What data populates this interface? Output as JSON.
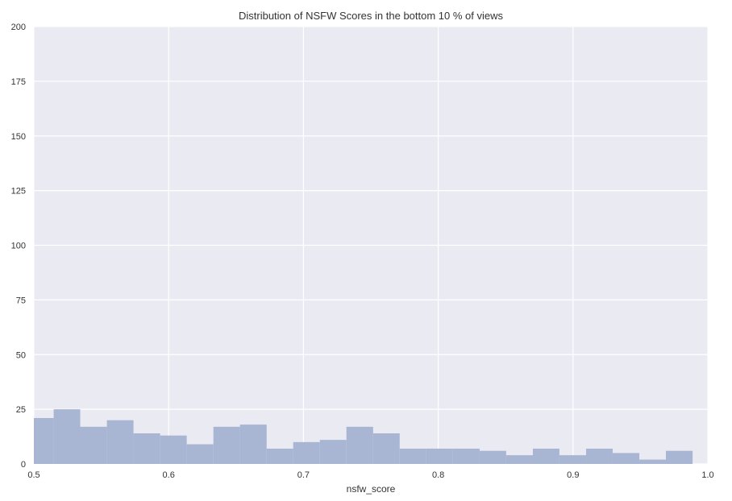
{
  "chart_data": {
    "type": "bar",
    "title": "Distribution of NSFW Scores in the bottom 10 % of views",
    "xlabel": "nsfw_score",
    "ylabel": "",
    "xlim": [
      0.5,
      1.0
    ],
    "ylim": [
      0,
      200
    ],
    "x_ticks": [
      "0.5",
      "0.6",
      "0.7",
      "0.8",
      "0.9",
      "1.0"
    ],
    "y_ticks": [
      "0",
      "25",
      "50",
      "75",
      "100",
      "125",
      "150",
      "175",
      "200"
    ],
    "grid": true,
    "bin_edges": [
      0.5,
      0.5147,
      0.5344,
      0.5542,
      0.5739,
      0.5937,
      0.6134,
      0.6332,
      0.6529,
      0.6727,
      0.6924,
      0.7122,
      0.7319,
      0.7517,
      0.7714,
      0.7912,
      0.8109,
      0.8307,
      0.8504,
      0.8702,
      0.8899,
      0.9097,
      0.9294,
      0.9492,
      0.9689,
      0.9887
    ],
    "values": [
      21,
      25,
      17,
      20,
      14,
      13,
      9,
      17,
      18,
      7,
      10,
      11,
      17,
      14,
      7,
      7,
      7,
      6,
      4,
      7,
      4,
      7,
      5,
      2,
      6
    ],
    "colors": {
      "bar": "#a8b6d4",
      "plot_background": "#eaeaf2",
      "grid": "#ffffff"
    }
  }
}
